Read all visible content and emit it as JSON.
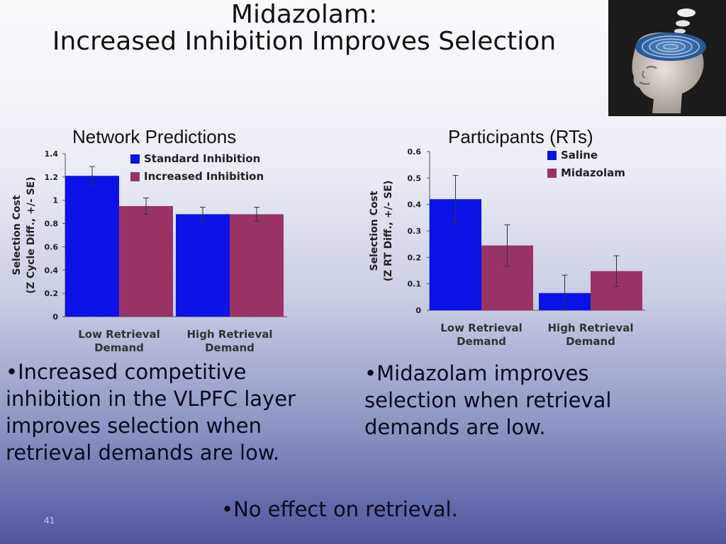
{
  "slide": {
    "title_line1": "Midazolam:",
    "title_line2": "Increased Inhibition Improves Selection",
    "image_description": "head-with-maze-brain-thinking",
    "left_chart_heading": "Network Predictions",
    "right_chart_heading": "Participants (RTs)",
    "bullet_left": "Increased competitive inhibition in the VLPFC layer improves selection when retrieval demands are low.",
    "bullet_right": "Midazolam improves selection when retrieval demands are low.",
    "bullet_bottom": "No effect on retrieval.",
    "bullet_glyph": "•",
    "slide_number": "41"
  },
  "chart_data": [
    {
      "type": "bar",
      "title": "Network Predictions",
      "categories": [
        "Low Retrieval Demand",
        "High Retrieval Demand"
      ],
      "ylabel_line1": "Selection Cost",
      "ylabel_line2": "(Z Cycle Diff., +/- SE)",
      "ylim": [
        0,
        1.4
      ],
      "yticks": [
        "0",
        "0.2",
        "0.4",
        "0.6",
        "0.8",
        "1",
        "1.2",
        "1.4"
      ],
      "series": [
        {
          "name": "Standard Inhibition",
          "color": "#0a12e6",
          "values": [
            1.21,
            0.88
          ],
          "errors": [
            0.08,
            0.06
          ]
        },
        {
          "name": "Increased Inhibition",
          "color": "#993366",
          "values": [
            0.95,
            0.88
          ],
          "errors": [
            0.07,
            0.06
          ]
        }
      ],
      "legend": "top-right",
      "grid": false
    },
    {
      "type": "bar",
      "title": "Participants (RTs)",
      "categories": [
        "Low Retrieval Demand",
        "High Retrieval Demand"
      ],
      "ylabel_line1": "Selection Cost",
      "ylabel_line2": "(Z RT Diff., +/- SE)",
      "ylim": [
        0,
        0.6
      ],
      "yticks": [
        "0",
        "0.1",
        "0.2",
        "0.3",
        "0.4",
        "0.5",
        "0.6"
      ],
      "series": [
        {
          "name": "Saline",
          "color": "#0a12e6",
          "values": [
            0.42,
            0.065
          ],
          "errors": [
            0.09,
            0.068
          ]
        },
        {
          "name": "Midazolam",
          "color": "#993366",
          "values": [
            0.245,
            0.148
          ],
          "errors": [
            0.078,
            0.058
          ]
        }
      ],
      "legend": "top-right",
      "grid": false
    }
  ]
}
